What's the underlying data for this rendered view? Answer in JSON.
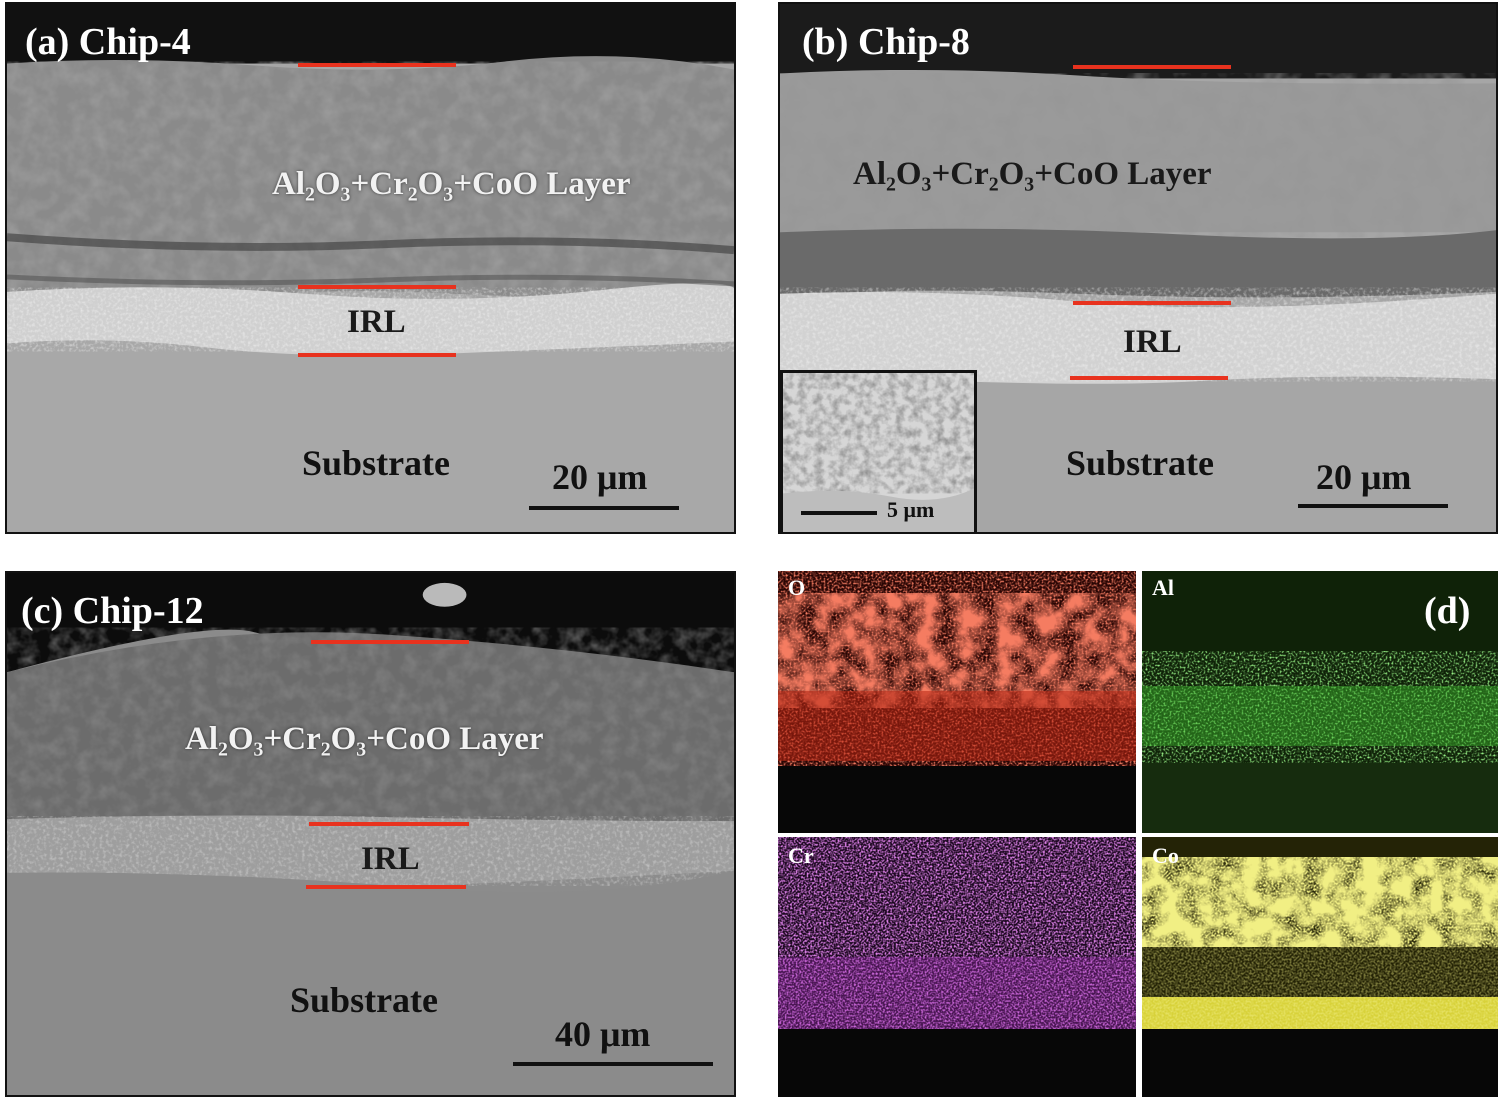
{
  "panels": {
    "a": {
      "label": "(a) Chip-4",
      "layer": "Al₂O₃+Cr₂O₃+CoO Layer",
      "irl": "IRL",
      "substrate": "Substrate",
      "scale": "20 μm"
    },
    "b": {
      "label": "(b) Chip-8",
      "layer": "Al₂O₃+Cr₂O₃+CoO Layer",
      "irl": "IRL",
      "substrate": "Substrate",
      "scale": "20 μm",
      "inset_scale": "5 μm"
    },
    "c": {
      "label": "(c) Chip-12",
      "layer": "Al₂O₃+Cr₂O₃+CoO Layer",
      "irl": "IRL",
      "substrate": "Substrate",
      "scale": "40 μm"
    },
    "d": {
      "label": "(d)",
      "maps": [
        {
          "element": "O",
          "color": "#e8321e"
        },
        {
          "element": "Al",
          "color": "#4cd83a"
        },
        {
          "element": "Cr",
          "color": "#c23ad8"
        },
        {
          "element": "Co",
          "color": "#e2dc3a"
        }
      ]
    }
  },
  "colors": {
    "marker_line": "#e8321e",
    "substrate_gray": "#a6a6a6"
  }
}
